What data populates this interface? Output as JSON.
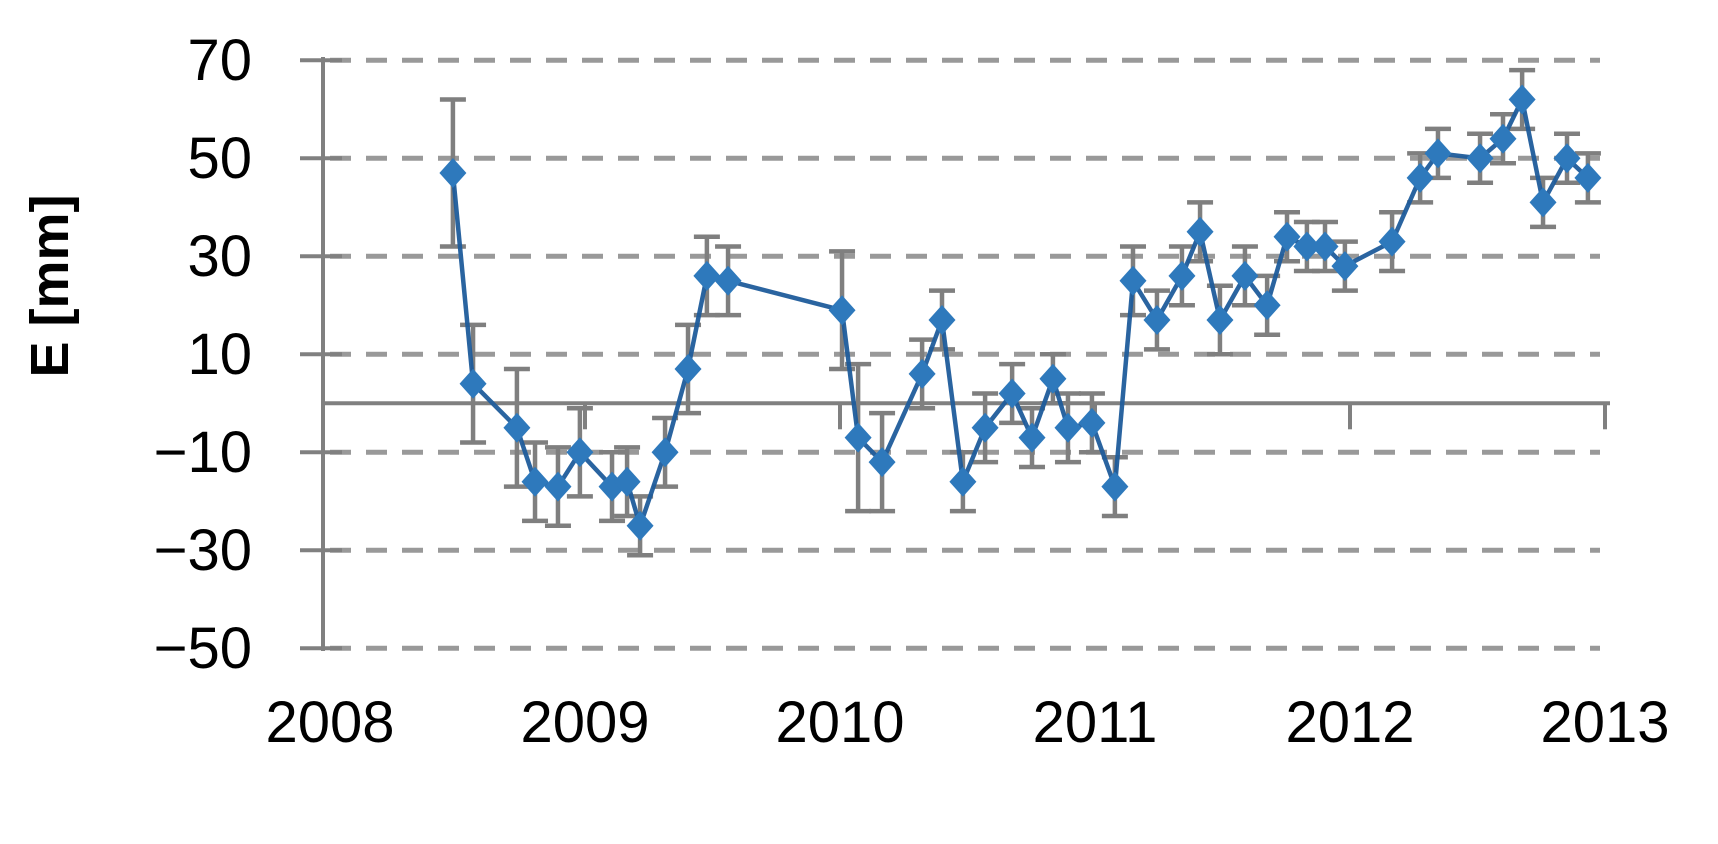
{
  "chart_data": {
    "type": "line",
    "title": "",
    "xlabel": "",
    "ylabel": "E [mm]",
    "marker": "diamond",
    "error_bars": true,
    "grid": "horizontal-dashed",
    "legend": "none",
    "xlim": [
      2008.0,
      2013.05
    ],
    "ylim": [
      -50,
      70
    ],
    "x_ticks": [
      2008,
      2009,
      2010,
      2011,
      2012,
      2013
    ],
    "x_tick_labels": [
      "2008",
      "2009",
      "2010",
      "2011",
      "2012",
      "2013"
    ],
    "y_ticks": [
      70,
      50,
      30,
      10,
      -10,
      -30,
      -50
    ],
    "y_tick_labels": [
      "70",
      "50",
      "30",
      "10",
      "−10",
      "−30",
      "−50"
    ],
    "colors": {
      "marker_fill": "#2e79bc",
      "line": "#1f5c9b",
      "error_bar": "#7f7f7f",
      "gridline": "#999999",
      "axis": "#808080",
      "text": "#000000"
    },
    "series": [
      {
        "name": "E",
        "points": [
          {
            "t": 2008.482,
            "v": 47,
            "e": 15
          },
          {
            "t": 2008.561,
            "v": 4,
            "e": 12
          },
          {
            "t": 2008.733,
            "v": -5,
            "e": 12
          },
          {
            "t": 2008.804,
            "v": -16,
            "e": 8
          },
          {
            "t": 2008.894,
            "v": -17,
            "e": 8
          },
          {
            "t": 2008.98,
            "v": -10,
            "e": 9
          },
          {
            "t": 2009.106,
            "v": -17,
            "e": 7
          },
          {
            "t": 2009.165,
            "v": -16,
            "e": 7
          },
          {
            "t": 2009.216,
            "v": -25,
            "e": 6
          },
          {
            "t": 2009.314,
            "v": -10,
            "e": 7
          },
          {
            "t": 2009.404,
            "v": 7,
            "e": 9
          },
          {
            "t": 2009.478,
            "v": 26,
            "e": 8
          },
          {
            "t": 2009.561,
            "v": 25,
            "e": 7
          },
          {
            "t": 2010.008,
            "v": 19,
            "e": 12
          },
          {
            "t": 2010.071,
            "v": -7,
            "e": 15
          },
          {
            "t": 2010.165,
            "v": -12,
            "e": 10
          },
          {
            "t": 2010.322,
            "v": 6,
            "e": 7
          },
          {
            "t": 2010.4,
            "v": 17,
            "e": 6
          },
          {
            "t": 2010.482,
            "v": -16,
            "e": 6
          },
          {
            "t": 2010.569,
            "v": -5,
            "e": 7
          },
          {
            "t": 2010.675,
            "v": 2,
            "e": 6
          },
          {
            "t": 2010.753,
            "v": -7,
            "e": 6
          },
          {
            "t": 2010.835,
            "v": 5,
            "e": 5
          },
          {
            "t": 2010.894,
            "v": -5,
            "e": 7
          },
          {
            "t": 2010.988,
            "v": -4,
            "e": 6
          },
          {
            "t": 2011.078,
            "v": -17,
            "e": 6
          },
          {
            "t": 2011.149,
            "v": 25,
            "e": 7
          },
          {
            "t": 2011.243,
            "v": 17,
            "e": 6
          },
          {
            "t": 2011.341,
            "v": 26,
            "e": 6
          },
          {
            "t": 2011.412,
            "v": 35,
            "e": 6
          },
          {
            "t": 2011.49,
            "v": 17,
            "e": 7
          },
          {
            "t": 2011.588,
            "v": 26,
            "e": 6
          },
          {
            "t": 2011.675,
            "v": 20,
            "e": 6
          },
          {
            "t": 2011.753,
            "v": 34,
            "e": 5
          },
          {
            "t": 2011.831,
            "v": 32,
            "e": 5
          },
          {
            "t": 2011.902,
            "v": 32,
            "e": 5
          },
          {
            "t": 2011.98,
            "v": 28,
            "e": 5
          },
          {
            "t": 2012.165,
            "v": 33,
            "e": 6
          },
          {
            "t": 2012.275,
            "v": 46,
            "e": 5
          },
          {
            "t": 2012.345,
            "v": 51,
            "e": 5
          },
          {
            "t": 2012.51,
            "v": 50,
            "e": 5
          },
          {
            "t": 2012.6,
            "v": 54,
            "e": 5
          },
          {
            "t": 2012.675,
            "v": 62,
            "e": 6
          },
          {
            "t": 2012.757,
            "v": 41,
            "e": 5
          },
          {
            "t": 2012.851,
            "v": 50,
            "e": 5
          },
          {
            "t": 2012.933,
            "v": 46,
            "e": 5
          }
        ]
      }
    ]
  }
}
